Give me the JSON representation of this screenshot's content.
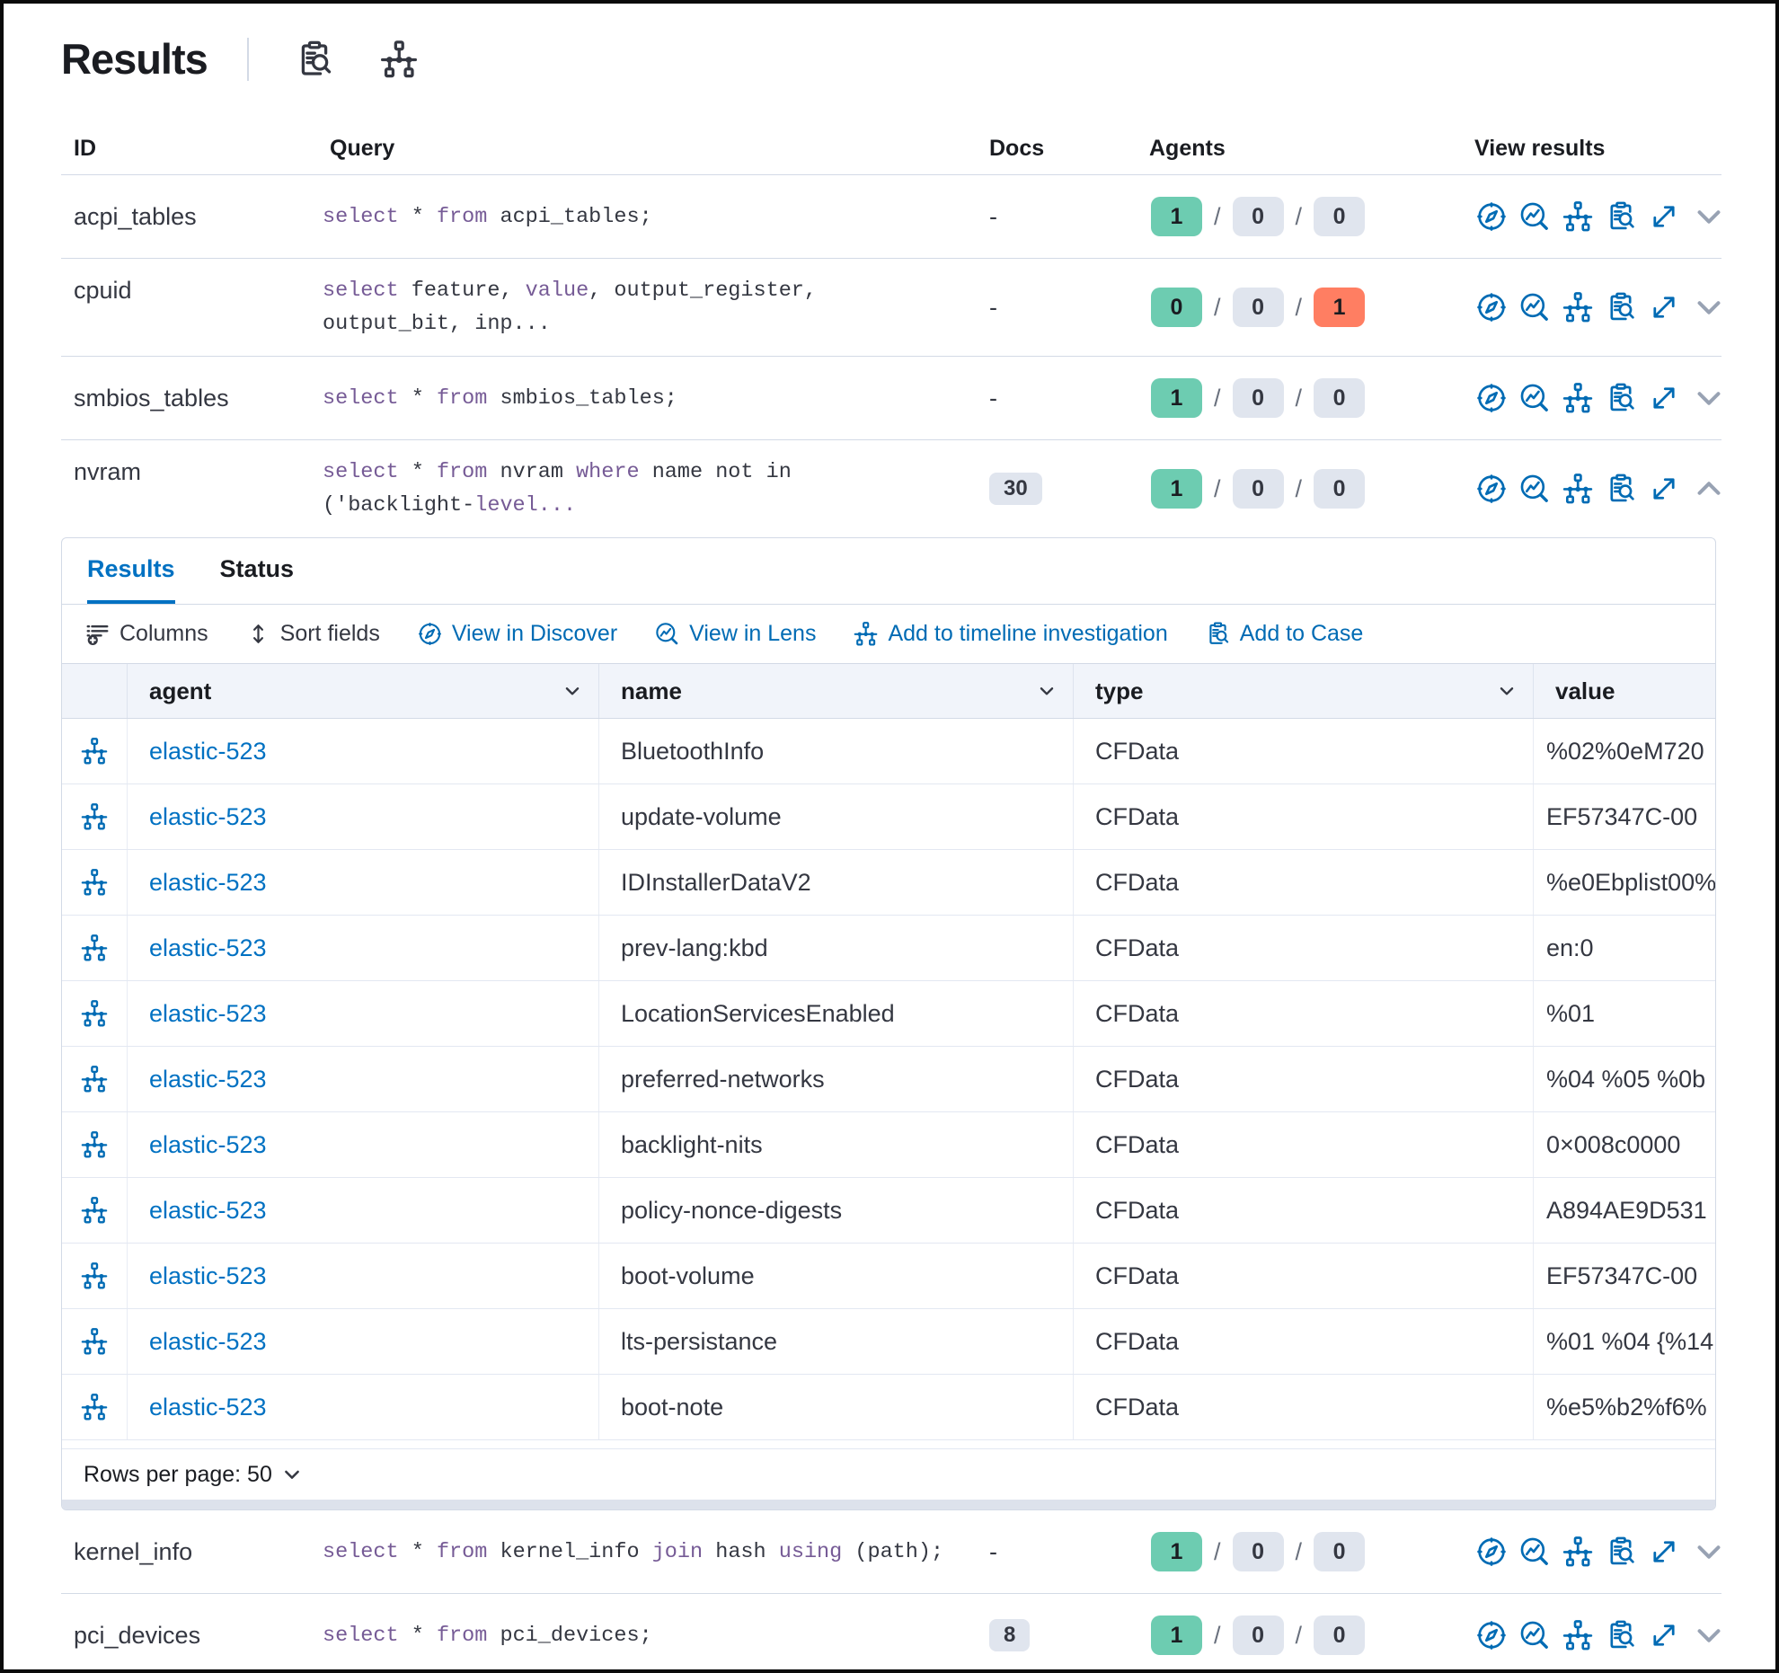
{
  "page": {
    "title": "Results"
  },
  "title_icons": [
    "inspect",
    "timeline"
  ],
  "colors": {
    "link_blue": "#006bb4",
    "tab_blue": "#0071c2",
    "keyword_purple": "#765b96",
    "badge_green": "#6dccb1",
    "badge_gray": "#e0e5ee",
    "badge_red": "#ff7e62",
    "border": "#d3dae6"
  },
  "table": {
    "headers": {
      "id": "ID",
      "query": "Query",
      "docs": "Docs",
      "agents": "Agents",
      "view": "View results"
    },
    "agents_separator": "/",
    "view_icons": [
      "discover",
      "lens",
      "timeline",
      "inspect",
      "expand"
    ],
    "rows": [
      {
        "id": "acpi_tables",
        "query": [
          {
            "t": "select",
            "k": true
          },
          {
            "t": " * ",
            "k": false
          },
          {
            "t": "from",
            "k": true
          },
          {
            "t": " acpi_tables;",
            "k": false
          }
        ],
        "docs": {
          "text": "-",
          "badge": false
        },
        "agents": [
          {
            "v": "1",
            "c": "green"
          },
          {
            "v": "0",
            "c": "gray"
          },
          {
            "v": "0",
            "c": "gray"
          }
        ],
        "chevron": "down",
        "expanded": false
      },
      {
        "id": "cpuid",
        "query": [
          {
            "t": "select",
            "k": true
          },
          {
            "t": " feature, ",
            "k": false
          },
          {
            "t": "value",
            "k": true
          },
          {
            "t": ", output_register,\noutput_bit, inp...",
            "k": false
          }
        ],
        "docs": {
          "text": "-",
          "badge": false
        },
        "agents": [
          {
            "v": "0",
            "c": "green"
          },
          {
            "v": "0",
            "c": "gray"
          },
          {
            "v": "1",
            "c": "red"
          }
        ],
        "chevron": "down",
        "expanded": false
      },
      {
        "id": "smbios_tables",
        "query": [
          {
            "t": "select",
            "k": true
          },
          {
            "t": " * ",
            "k": false
          },
          {
            "t": "from",
            "k": true
          },
          {
            "t": " smbios_tables;",
            "k": false
          }
        ],
        "docs": {
          "text": "-",
          "badge": false
        },
        "agents": [
          {
            "v": "1",
            "c": "green"
          },
          {
            "v": "0",
            "c": "gray"
          },
          {
            "v": "0",
            "c": "gray"
          }
        ],
        "chevron": "down",
        "expanded": false
      },
      {
        "id": "nvram",
        "query": [
          {
            "t": "select",
            "k": true
          },
          {
            "t": " * ",
            "k": false
          },
          {
            "t": "from",
            "k": true
          },
          {
            "t": " nvram ",
            "k": false
          },
          {
            "t": "where",
            "k": true
          },
          {
            "t": " name not in\n('backlight-",
            "k": false
          },
          {
            "t": "level...",
            "k": true
          }
        ],
        "docs": {
          "text": "30",
          "badge": true
        },
        "agents": [
          {
            "v": "1",
            "c": "green"
          },
          {
            "v": "0",
            "c": "gray"
          },
          {
            "v": "0",
            "c": "gray"
          }
        ],
        "chevron": "up",
        "expanded": true
      },
      {
        "id": "kernel_info",
        "query": [
          {
            "t": "select",
            "k": true
          },
          {
            "t": " * ",
            "k": false
          },
          {
            "t": "from",
            "k": true
          },
          {
            "t": " kernel_info ",
            "k": false
          },
          {
            "t": "join",
            "k": true
          },
          {
            "t": " hash ",
            "k": false
          },
          {
            "t": "using",
            "k": true
          },
          {
            "t": " (path);",
            "k": false
          }
        ],
        "docs": {
          "text": "-",
          "badge": false
        },
        "agents": [
          {
            "v": "1",
            "c": "green"
          },
          {
            "v": "0",
            "c": "gray"
          },
          {
            "v": "0",
            "c": "gray"
          }
        ],
        "chevron": "down",
        "expanded": false
      },
      {
        "id": "pci_devices",
        "query": [
          {
            "t": "select",
            "k": true
          },
          {
            "t": " * ",
            "k": false
          },
          {
            "t": "from",
            "k": true
          },
          {
            "t": " pci_devices;",
            "k": false
          }
        ],
        "docs": {
          "text": "8",
          "badge": true
        },
        "agents": [
          {
            "v": "1",
            "c": "green"
          },
          {
            "v": "0",
            "c": "gray"
          },
          {
            "v": "0",
            "c": "gray"
          }
        ],
        "chevron": "down",
        "expanded": false
      }
    ]
  },
  "expanded_panel": {
    "attached_to": "nvram",
    "tabs": [
      {
        "label": "Results",
        "active": true
      },
      {
        "label": "Status",
        "active": false
      }
    ],
    "toolbar": [
      {
        "label": "Columns",
        "icon": "columns",
        "color": "dark"
      },
      {
        "label": "Sort fields",
        "icon": "sort",
        "color": "dark"
      },
      {
        "label": "View in Discover",
        "icon": "discover",
        "color": "blue"
      },
      {
        "label": "View in Lens",
        "icon": "lens",
        "color": "blue"
      },
      {
        "label": "Add to timeline investigation",
        "icon": "timeline",
        "color": "blue"
      },
      {
        "label": "Add to Case",
        "icon": "inspect",
        "color": "blue"
      }
    ],
    "grid": {
      "columns": [
        {
          "label": "agent",
          "sortable": true
        },
        {
          "label": "name",
          "sortable": true
        },
        {
          "label": "type",
          "sortable": true
        },
        {
          "label": "value",
          "sortable": false
        }
      ],
      "rows": [
        {
          "agent": "elastic-523",
          "name": "BluetoothInfo",
          "type": "CFData",
          "value": "%02%0eM720"
        },
        {
          "agent": "elastic-523",
          "name": "update-volume",
          "type": "CFData",
          "value": "EF57347C-00"
        },
        {
          "agent": "elastic-523",
          "name": "IDInstallerDataV2",
          "type": "CFData",
          "value": "%e0Ebplist00%"
        },
        {
          "agent": "elastic-523",
          "name": "prev-lang:kbd",
          "type": "CFData",
          "value": "en:0"
        },
        {
          "agent": "elastic-523",
          "name": "LocationServicesEnabled",
          "type": "CFData",
          "value": "%01"
        },
        {
          "agent": "elastic-523",
          "name": "preferred-networks",
          "type": "CFData",
          "value": "%04 %05 %0b"
        },
        {
          "agent": "elastic-523",
          "name": "backlight-nits",
          "type": "CFData",
          "value": "0×008c0000"
        },
        {
          "agent": "elastic-523",
          "name": "policy-nonce-digests",
          "type": "CFData",
          "value": "A894AE9D531"
        },
        {
          "agent": "elastic-523",
          "name": "boot-volume",
          "type": "CFData",
          "value": "EF57347C-00"
        },
        {
          "agent": "elastic-523",
          "name": "lts-persistance",
          "type": "CFData",
          "value": "%01 %04 {%14"
        },
        {
          "agent": "elastic-523",
          "name": "boot-note",
          "type": "CFData",
          "value": "%e5%b2%f6%"
        }
      ]
    },
    "footer": {
      "rows_per_page_label": "Rows per page: 50"
    }
  }
}
